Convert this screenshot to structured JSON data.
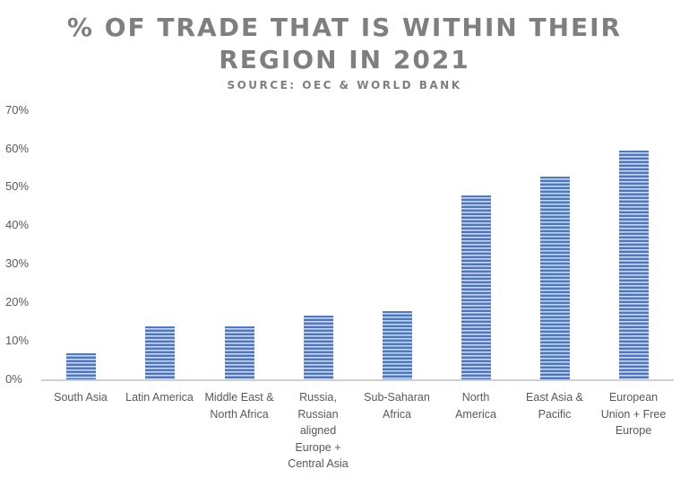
{
  "chart_data": {
    "type": "bar",
    "title": "% OF TRADE THAT IS WITHIN THEIR REGION IN 2021",
    "title_lines": [
      "% OF TRADE THAT IS WITHIN THEIR",
      "REGION IN 2021"
    ],
    "subtitle": "SOURCE: OEC & WORLD BANK",
    "xlabel": "",
    "ylabel": "",
    "ylim": [
      0,
      70
    ],
    "y_ticks": [
      "0%",
      "10%",
      "20%",
      "30%",
      "40%",
      "50%",
      "60%",
      "70%"
    ],
    "grid": false,
    "legend": null,
    "categories": [
      "South Asia",
      "Latin America",
      "Middle East & North Africa",
      "Russia, Russian aligned Europe + Central Asia",
      "Sub-Saharan Africa",
      "North America",
      "East Asia & Pacific",
      "European Union + Free Europe"
    ],
    "values": [
      6.8,
      13.8,
      13.8,
      16.6,
      17.7,
      47.8,
      52.7,
      59.5
    ],
    "units": "%",
    "bar_color": "#4472c4"
  }
}
